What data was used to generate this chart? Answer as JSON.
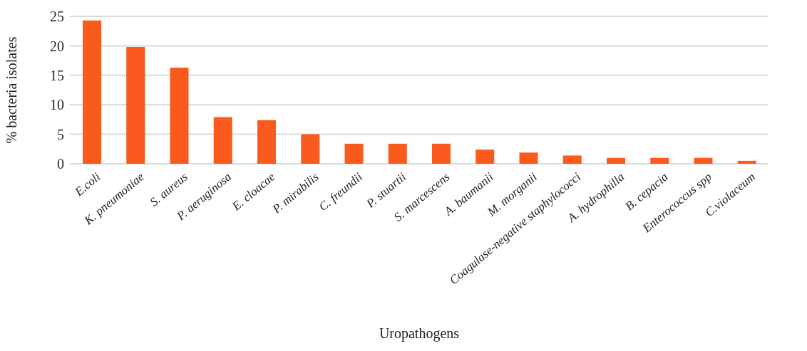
{
  "chart_data": {
    "type": "bar",
    "xlabel": "Uropathogens",
    "ylabel": "% bacteria isolates",
    "categories": [
      "E.coli",
      "K. pneumoniae",
      "S. aureus",
      "P. aeruginosa",
      "E. cloacae",
      "P. mirabilis",
      "C. freundii",
      "P. stuartii",
      "S. marcescens",
      "A. baumanii",
      "M. morganii",
      "Coagulase-negative staphylococci",
      "A. hydrophilla",
      "B. cepacia",
      "Enterococcus spp",
      "C.violaceum"
    ],
    "values": [
      24.3,
      19.8,
      16.3,
      7.9,
      7.4,
      5.0,
      3.4,
      3.4,
      3.4,
      2.4,
      1.9,
      1.4,
      1.0,
      1.0,
      1.0,
      0.5
    ],
    "color": "#fa5a1e",
    "ylim": [
      0,
      25
    ],
    "yticks": [
      0,
      5,
      10,
      15,
      20,
      25
    ],
    "grid": "y",
    "legend": false
  }
}
